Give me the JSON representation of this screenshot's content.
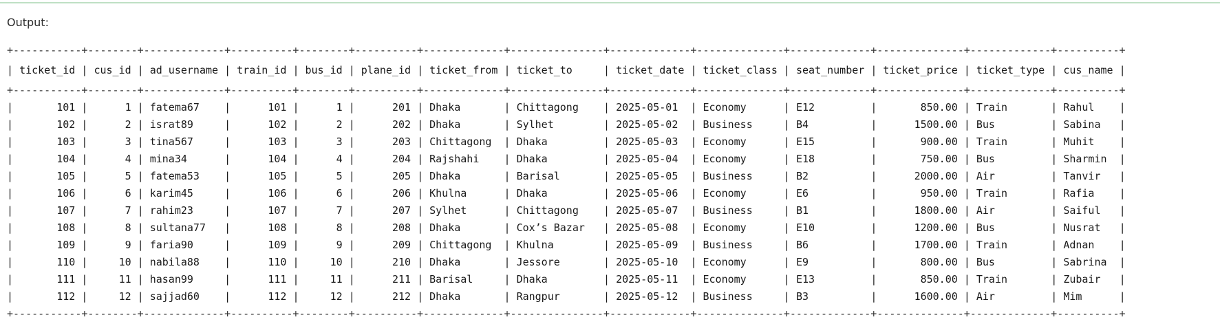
{
  "output_label": "Output:",
  "table": {
    "columns": [
      {
        "label": "ticket_id",
        "align": "right"
      },
      {
        "label": "cus_id",
        "align": "right"
      },
      {
        "label": "ad_username",
        "align": "left"
      },
      {
        "label": "train_id",
        "align": "right"
      },
      {
        "label": "bus_id",
        "align": "right"
      },
      {
        "label": "plane_id",
        "align": "right"
      },
      {
        "label": "ticket_from",
        "align": "left"
      },
      {
        "label": "ticket_to",
        "align": "left"
      },
      {
        "label": "ticket_date",
        "align": "left"
      },
      {
        "label": "ticket_class",
        "align": "left"
      },
      {
        "label": "seat_number",
        "align": "left"
      },
      {
        "label": "ticket_price",
        "align": "right"
      },
      {
        "label": "ticket_type",
        "align": "left"
      },
      {
        "label": "cus_name",
        "align": "left"
      }
    ],
    "widths": [
      11,
      8,
      13,
      10,
      8,
      10,
      13,
      15,
      13,
      14,
      13,
      14,
      13,
      10
    ],
    "rows": [
      [
        "101",
        "1",
        "fatema67",
        "101",
        "1",
        "201",
        "Dhaka",
        "Chittagong",
        "2025-05-01",
        "Economy",
        "E12",
        "850.00",
        "Train",
        "Rahul"
      ],
      [
        "102",
        "2",
        "israt89",
        "102",
        "2",
        "202",
        "Dhaka",
        "Sylhet",
        "2025-05-02",
        "Business",
        "B4",
        "1500.00",
        "Bus",
        "Sabina"
      ],
      [
        "103",
        "3",
        "tina567",
        "103",
        "3",
        "203",
        "Chittagong",
        "Dhaka",
        "2025-05-03",
        "Economy",
        "E15",
        "900.00",
        "Train",
        "Muhit"
      ],
      [
        "104",
        "4",
        "mina34",
        "104",
        "4",
        "204",
        "Rajshahi",
        "Dhaka",
        "2025-05-04",
        "Economy",
        "E18",
        "750.00",
        "Bus",
        "Sharmin"
      ],
      [
        "105",
        "5",
        "fatema53",
        "105",
        "5",
        "205",
        "Dhaka",
        "Barisal",
        "2025-05-05",
        "Business",
        "B2",
        "2000.00",
        "Air",
        "Tanvir"
      ],
      [
        "106",
        "6",
        "karim45",
        "106",
        "6",
        "206",
        "Khulna",
        "Dhaka",
        "2025-05-06",
        "Economy",
        "E6",
        "950.00",
        "Train",
        "Rafia"
      ],
      [
        "107",
        "7",
        "rahim23",
        "107",
        "7",
        "207",
        "Sylhet",
        "Chittagong",
        "2025-05-07",
        "Business",
        "B1",
        "1800.00",
        "Air",
        "Saiful"
      ],
      [
        "108",
        "8",
        "sultana77",
        "108",
        "8",
        "208",
        "Dhaka",
        "Cox’s Bazar",
        "2025-05-08",
        "Economy",
        "E10",
        "1200.00",
        "Bus",
        "Nusrat"
      ],
      [
        "109",
        "9",
        "faria90",
        "109",
        "9",
        "209",
        "Chittagong",
        "Khulna",
        "2025-05-09",
        "Business",
        "B6",
        "1700.00",
        "Train",
        "Adnan"
      ],
      [
        "110",
        "10",
        "nabila88",
        "110",
        "10",
        "210",
        "Dhaka",
        "Jessore",
        "2025-05-10",
        "Economy",
        "E9",
        "800.00",
        "Bus",
        "Sabrina"
      ],
      [
        "111",
        "11",
        "hasan99",
        "111",
        "11",
        "211",
        "Barisal",
        "Dhaka",
        "2025-05-11",
        "Economy",
        "E13",
        "850.00",
        "Train",
        "Zubair"
      ],
      [
        "112",
        "12",
        "sajjad60",
        "112",
        "12",
        "212",
        "Dhaka",
        "Rangpur",
        "2025-05-12",
        "Business",
        "B3",
        "1600.00",
        "Air",
        "Mim"
      ]
    ]
  }
}
